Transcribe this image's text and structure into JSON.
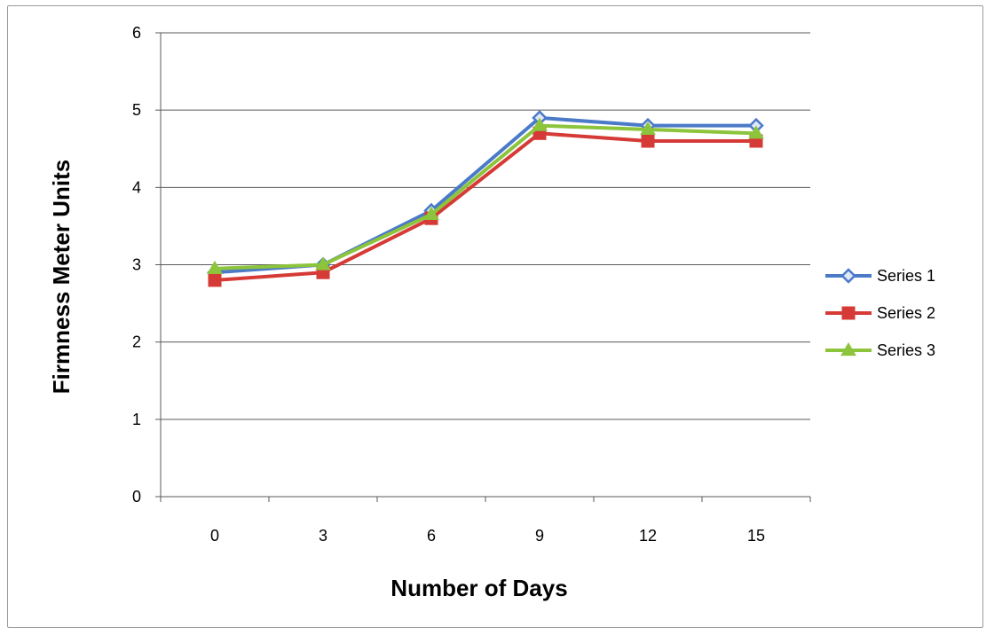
{
  "chart_data": {
    "type": "line",
    "x": [
      0,
      3,
      6,
      9,
      12,
      15
    ],
    "xlabel": "Number of Days",
    "ylabel": "Firmness Meter Units",
    "ylim": [
      0,
      6
    ],
    "yticks": [
      0,
      1,
      2,
      3,
      4,
      5,
      6
    ],
    "grid": true,
    "legend_position": "right",
    "series": [
      {
        "name": "Series 1",
        "color": "#4a7ac8",
        "marker": "diamond",
        "values": [
          2.9,
          3.0,
          3.7,
          4.9,
          4.8,
          4.8
        ]
      },
      {
        "name": "Series 2",
        "color": "#d63a36",
        "marker": "square",
        "values": [
          2.8,
          2.9,
          3.6,
          4.7,
          4.6,
          4.6
        ]
      },
      {
        "name": "Series 3",
        "color": "#8cc43c",
        "marker": "triangle",
        "values": [
          2.95,
          3.0,
          3.65,
          4.8,
          4.75,
          4.7
        ]
      }
    ]
  }
}
